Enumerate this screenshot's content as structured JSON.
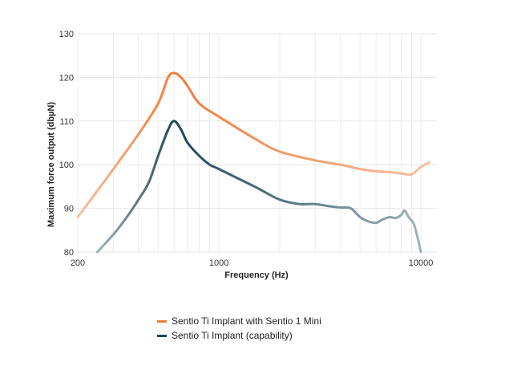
{
  "chart_data": {
    "type": "line",
    "xlabel": "Frequency (Hz)",
    "ylabel": "Maximum force output (dbµN)",
    "xscale": "log",
    "xlim": [
      200,
      12000
    ],
    "ylim": [
      80,
      130
    ],
    "x_ticks": [
      200,
      1000,
      10000
    ],
    "x_tick_labels": [
      "200",
      "1000",
      "10000"
    ],
    "y_ticks": [
      80,
      90,
      100,
      110,
      120,
      130
    ],
    "y_tick_labels": [
      "80",
      "90",
      "100",
      "110",
      "120",
      "130"
    ],
    "grid": true,
    "legend_position": "bottom-center",
    "series": [
      {
        "name": "Sentio Ti Implant with Sentio 1 Mini",
        "color": "#ee7d3b",
        "fade_color": "#f6c2a0",
        "x": [
          200,
          250,
          300,
          400,
          500,
          560,
          600,
          650,
          700,
          800,
          1000,
          1500,
          2000,
          3000,
          4000,
          5000,
          6000,
          7000,
          8000,
          9000,
          10000,
          11000
        ],
        "y": [
          88,
          94,
          99,
          107,
          114,
          120,
          121,
          120,
          118,
          114,
          111,
          106,
          103,
          101,
          100,
          99,
          98.5,
          98.3,
          98,
          97.8,
          99.5,
          100.5
        ]
      },
      {
        "name": "Sentio Ti Implant (capability)",
        "color": "#1e4757",
        "fade_color": "#9fb2ba",
        "x": [
          250,
          300,
          350,
          400,
          450,
          500,
          560,
          600,
          650,
          700,
          800,
          900,
          1000,
          1500,
          2000,
          2500,
          3000,
          3500,
          4000,
          4500,
          5000,
          5500,
          6000,
          6500,
          7000,
          7500,
          8000,
          8300,
          8700,
          9300,
          10000
        ],
        "y": [
          80,
          84,
          88,
          92,
          96,
          102,
          108,
          110,
          108,
          105,
          102,
          100,
          99,
          95,
          92,
          91,
          91,
          90.5,
          90.2,
          90,
          88,
          87,
          86.7,
          87.5,
          88,
          87.8,
          88.5,
          89.5,
          88,
          86,
          80
        ]
      }
    ]
  }
}
